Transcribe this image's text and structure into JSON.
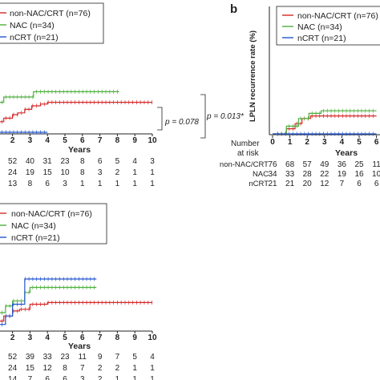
{
  "panel_b_letter": "b",
  "chart_data": [
    {
      "type": "line",
      "panel": "top-left (cropped)",
      "xlabel": "Years",
      "ylabel": "",
      "xlim": [
        0,
        10
      ],
      "x_ticks": [
        "2",
        "3",
        "4",
        "5",
        "6",
        "7",
        "8",
        "9",
        "10"
      ],
      "legend": [
        "non-NAC/CRT (n=76)",
        "NAC (n=34)",
        "nCRT (n=21)"
      ],
      "legend_placement": "top-left",
      "annotations": [
        "p = 0.078",
        "p = 0.013*"
      ],
      "series": [
        {
          "name": "non-NAC/CRT (n=76)",
          "color": "#d62728",
          "x": [
            0,
            0.6,
            0.9,
            1.2,
            1.5,
            2.0,
            2.3,
            2.7,
            3.1,
            3.6,
            4.0,
            10.0
          ],
          "y": [
            0,
            0.02,
            0.04,
            0.06,
            0.08,
            0.1,
            0.11,
            0.13,
            0.15,
            0.16,
            0.17,
            0.17
          ]
        },
        {
          "name": "NAC (n=34)",
          "color": "#4caf3c",
          "x": [
            0,
            0.4,
            0.8,
            1.5,
            3.2,
            8.1
          ],
          "y": [
            0,
            0.12,
            0.17,
            0.2,
            0.23,
            0.23
          ]
        },
        {
          "name": "nCRT (n=21)",
          "color": "#2255cc",
          "x": [
            0,
            4.0
          ],
          "y": [
            0,
            0
          ]
        }
      ],
      "risk_table": {
        "rows": [
          {
            "label": "non-NAC/CRT",
            "values": [
              "52",
              "40",
              "31",
              "23",
              "8",
              "6",
              "5",
              "4",
              "3"
            ]
          },
          {
            "label": "NAC",
            "values": [
              "24",
              "19",
              "15",
              "10",
              "8",
              "3",
              "2",
              "1",
              "1"
            ]
          },
          {
            "label": "nCRT",
            "values": [
              "13",
              "8",
              "6",
              "3",
              "1",
              "1",
              "1",
              "1",
              "1"
            ]
          }
        ]
      }
    },
    {
      "type": "line",
      "panel": "b",
      "xlabel": "Years",
      "ylabel": "LPLN recurrence rate (%)",
      "xlim": [
        0,
        6
      ],
      "x_ticks": [
        "0",
        "1",
        "2",
        "3",
        "4",
        "5",
        "6"
      ],
      "legend": [
        "non-NAC/CRT (n=76)",
        "NAC (n=34)",
        "nCRT (n=21)"
      ],
      "legend_placement": "top-right",
      "series": [
        {
          "name": "non-NAC/CRT (n=76)",
          "color": "#d62728",
          "x": [
            0,
            0.8,
            1.3,
            1.7,
            2.2,
            6.0
          ],
          "y": [
            0,
            2,
            4,
            6,
            7,
            7
          ]
        },
        {
          "name": "NAC (n=34)",
          "color": "#4caf3c",
          "x": [
            0,
            0.8,
            1.5,
            2.1,
            2.8,
            6.0
          ],
          "y": [
            0,
            3,
            6,
            8,
            9,
            9
          ]
        },
        {
          "name": "nCRT (n=21)",
          "color": "#2255cc",
          "x": [
            0,
            6.0
          ],
          "y": [
            0,
            0
          ]
        }
      ],
      "risk_table": {
        "title": "Number at risk",
        "rows": [
          {
            "label": "non-NAC/CRT",
            "values": [
              "76",
              "68",
              "57",
              "49",
              "36",
              "25",
              "11"
            ]
          },
          {
            "label": "NAC",
            "values": [
              "34",
              "33",
              "28",
              "22",
              "19",
              "16",
              "10"
            ]
          },
          {
            "label": "nCRT",
            "values": [
              "21",
              "21",
              "20",
              "12",
              "7",
              "6",
              "6"
            ]
          }
        ]
      }
    },
    {
      "type": "line",
      "panel": "bottom-left (cropped)",
      "xlabel": "Years",
      "ylabel": "",
      "xlim": [
        0,
        10
      ],
      "x_ticks": [
        "2",
        "3",
        "4",
        "5",
        "6",
        "7",
        "8",
        "9",
        "10"
      ],
      "legend": [
        "non-NAC/CRT (n=76)",
        "NAC (n=34)",
        "nCRT (n=21)"
      ],
      "legend_placement": "top-left",
      "series": [
        {
          "name": "non-NAC/CRT (n=76)",
          "color": "#d62728",
          "x": [
            0,
            0.5,
            1.0,
            1.5,
            2.0,
            2.4,
            3.0,
            4.0,
            10.0
          ],
          "y": [
            0,
            0.03,
            0.05,
            0.08,
            0.11,
            0.12,
            0.15,
            0.16,
            0.16
          ]
        },
        {
          "name": "NAC (n=34)",
          "color": "#4caf3c",
          "x": [
            0,
            0.5,
            1.0,
            1.6,
            2.0,
            2.7,
            3.0,
            6.8
          ],
          "y": [
            0,
            0.05,
            0.1,
            0.14,
            0.17,
            0.22,
            0.25,
            0.25
          ]
        },
        {
          "name": "nCRT (n=21)",
          "color": "#2255cc",
          "x": [
            0,
            0.8,
            1.6,
            2.0,
            2.7,
            6.8
          ],
          "y": [
            0,
            0.03,
            0.08,
            0.15,
            0.3,
            0.3
          ]
        }
      ],
      "risk_table": {
        "rows": [
          {
            "label": "non-NAC/CRT",
            "values": [
              "52",
              "39",
              "33",
              "23",
              "11",
              "9",
              "7",
              "5",
              "4"
            ]
          },
          {
            "label": "NAC",
            "values": [
              "24",
              "15",
              "12",
              "8",
              "7",
              "2",
              "2",
              "1",
              "1"
            ]
          },
          {
            "label": "nCRT",
            "values": [
              "14",
              "7",
              "6",
              "6",
              "3",
              "2",
              "1",
              "1",
              "1"
            ]
          }
        ]
      }
    }
  ]
}
